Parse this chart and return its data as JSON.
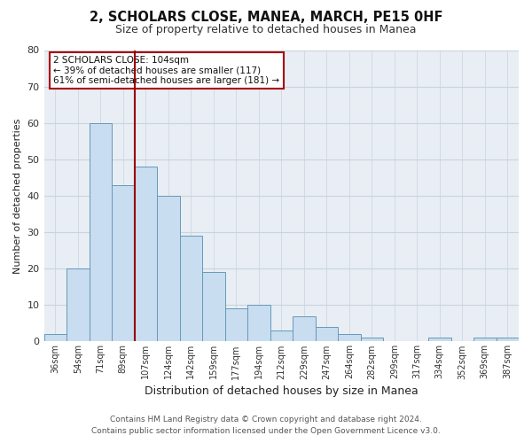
{
  "title": "2, SCHOLARS CLOSE, MANEA, MARCH, PE15 0HF",
  "subtitle": "Size of property relative to detached houses in Manea",
  "xlabel": "Distribution of detached houses by size in Manea",
  "ylabel": "Number of detached properties",
  "bar_labels": [
    "36sqm",
    "54sqm",
    "71sqm",
    "89sqm",
    "107sqm",
    "124sqm",
    "142sqm",
    "159sqm",
    "177sqm",
    "194sqm",
    "212sqm",
    "229sqm",
    "247sqm",
    "264sqm",
    "282sqm",
    "299sqm",
    "317sqm",
    "334sqm",
    "352sqm",
    "369sqm",
    "387sqm"
  ],
  "bar_values": [
    2,
    20,
    60,
    43,
    48,
    40,
    29,
    19,
    9,
    10,
    3,
    7,
    4,
    2,
    1,
    0,
    0,
    1,
    0,
    1,
    1
  ],
  "bar_color": "#c8ddef",
  "bar_edge_color": "#6699bb",
  "vline_x_index": 4,
  "vline_color": "#990000",
  "ylim": [
    0,
    80
  ],
  "yticks": [
    0,
    10,
    20,
    30,
    40,
    50,
    60,
    70,
    80
  ],
  "annotation_text": "2 SCHOLARS CLOSE: 104sqm\n← 39% of detached houses are smaller (117)\n61% of semi-detached houses are larger (181) →",
  "annotation_box_color": "#ffffff",
  "annotation_box_edge": "#aa0000",
  "footer_line1": "Contains HM Land Registry data © Crown copyright and database right 2024.",
  "footer_line2": "Contains public sector information licensed under the Open Government Licence v3.0.",
  "fig_bg_color": "#ffffff",
  "plot_bg_color": "#e8eef4",
  "grid_color": "#c8d4de"
}
